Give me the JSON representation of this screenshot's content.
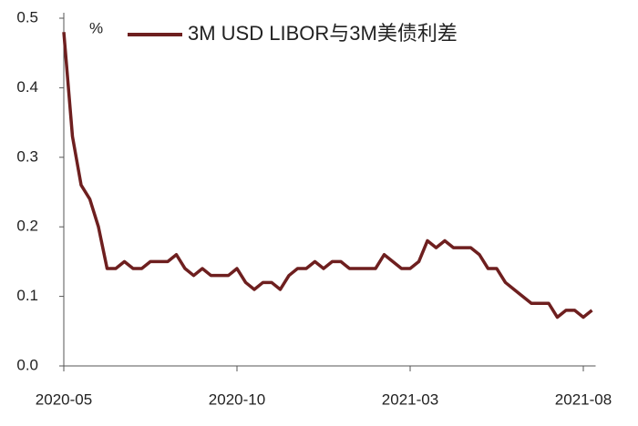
{
  "chart_data": {
    "type": "line",
    "y_label": "%",
    "categories": [
      "2020-05",
      null,
      null,
      null,
      null,
      null,
      null,
      null,
      null,
      null,
      null,
      null,
      null,
      null,
      null,
      null,
      null,
      null,
      null,
      null,
      "2020-10",
      null,
      null,
      null,
      null,
      null,
      null,
      null,
      null,
      null,
      null,
      null,
      null,
      null,
      null,
      null,
      null,
      null,
      null,
      null,
      "2021-03",
      null,
      null,
      null,
      null,
      null,
      null,
      null,
      null,
      null,
      null,
      null,
      null,
      null,
      null,
      null,
      null,
      null,
      null,
      null,
      "2021-08",
      null
    ],
    "series": [
      {
        "name": "3M USD LIBOR与3M美债利差",
        "color": "#6e1f1f",
        "values": [
          0.48,
          0.33,
          0.26,
          0.24,
          0.2,
          0.14,
          0.14,
          0.15,
          0.14,
          0.14,
          0.15,
          0.15,
          0.15,
          0.16,
          0.14,
          0.13,
          0.14,
          0.13,
          0.13,
          0.13,
          0.14,
          0.12,
          0.11,
          0.12,
          0.12,
          0.11,
          0.13,
          0.14,
          0.14,
          0.15,
          0.14,
          0.15,
          0.15,
          0.14,
          0.14,
          0.14,
          0.14,
          0.16,
          0.15,
          0.14,
          0.14,
          0.15,
          0.18,
          0.17,
          0.18,
          0.17,
          0.17,
          0.17,
          0.16,
          0.14,
          0.14,
          0.12,
          0.11,
          0.1,
          0.09,
          0.09,
          0.09,
          0.07,
          0.08,
          0.08,
          0.07,
          0.08
        ]
      }
    ],
    "ylim": [
      0,
      0.5
    ],
    "yticks": [
      {
        "value": 0,
        "label": "0.0"
      },
      0.1,
      0.2,
      0.3,
      0.4,
      0.5
    ],
    "grid": false,
    "legend": "top"
  }
}
